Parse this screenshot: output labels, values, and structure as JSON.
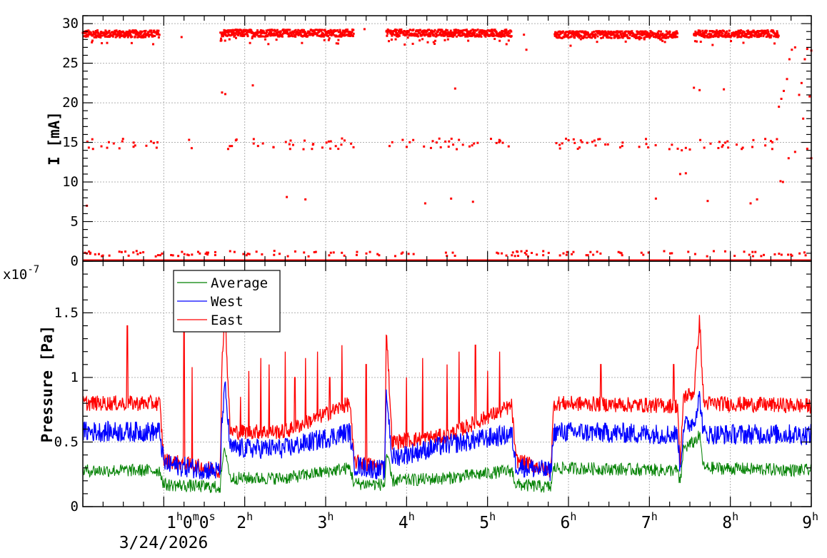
{
  "chart_data": [
    {
      "type": "scatter",
      "title": "",
      "xlabel": "",
      "ylabel": "I [mA]",
      "xlim": [
        0,
        9
      ],
      "ylim": [
        0,
        31
      ],
      "yticks": [
        0,
        5,
        10,
        15,
        20,
        25,
        30
      ],
      "grid": true,
      "color": "#ff0000",
      "series": [
        {
          "name": "",
          "upper_segments": [
            [
              0.0,
              0.95,
              28.7
            ],
            [
              1.7,
              3.35,
              28.8
            ],
            [
              3.75,
              5.3,
              28.8
            ],
            [
              5.83,
              7.35,
              28.6
            ],
            [
              7.55,
              8.6,
              28.7
            ]
          ],
          "mid_band": {
            "level": 14.8,
            "segments": [
              [
                0.0,
                0.95
              ],
              [
                1.3,
                1.35
              ],
              [
                1.7,
                3.35
              ],
              [
                3.75,
                5.3
              ],
              [
                5.83,
                7.35
              ],
              [
                7.55,
                8.6
              ]
            ]
          },
          "zero_line": 0.0,
          "points": [
            [
              0.05,
              7.0
            ],
            [
              1.22,
              28.3
            ],
            [
              1.72,
              21.3
            ],
            [
              1.76,
              21.1
            ],
            [
              2.1,
              22.2
            ],
            [
              2.52,
              8.1
            ],
            [
              2.75,
              7.8
            ],
            [
              3.48,
              29.3
            ],
            [
              4.23,
              7.3
            ],
            [
              4.55,
              7.9
            ],
            [
              4.6,
              21.8
            ],
            [
              4.82,
              7.5
            ],
            [
              5.45,
              28.6
            ],
            [
              5.48,
              26.7
            ],
            [
              7.08,
              7.9
            ],
            [
              7.55,
              21.9
            ],
            [
              7.62,
              21.6
            ],
            [
              7.72,
              7.6
            ],
            [
              7.92,
              21.7
            ],
            [
              8.25,
              7.3
            ],
            [
              8.33,
              7.8
            ],
            [
              7.35,
              14.2
            ],
            [
              7.4,
              14.0
            ],
            [
              7.45,
              14.3
            ],
            [
              7.5,
              14.1
            ],
            [
              7.38,
              11.0
            ],
            [
              7.45,
              11.1
            ],
            [
              8.6,
              19.5
            ],
            [
              8.63,
              20.5
            ],
            [
              8.66,
              21.5
            ],
            [
              8.7,
              23.0
            ],
            [
              8.73,
              25.5
            ],
            [
              8.76,
              26.7
            ],
            [
              8.8,
              27.0
            ],
            [
              8.85,
              21.0
            ],
            [
              8.88,
              22.5
            ],
            [
              8.92,
              25.5
            ],
            [
              8.95,
              26.8
            ],
            [
              9.0,
              26.6
            ],
            [
              8.62,
              10.1
            ],
            [
              8.65,
              10.0
            ],
            [
              8.72,
              13.0
            ],
            [
              8.8,
              13.8
            ],
            [
              8.9,
              18.0
            ],
            [
              8.95,
              14.2
            ],
            [
              9.0,
              13.0
            ],
            [
              8.98,
              20.8
            ]
          ]
        }
      ]
    },
    {
      "type": "line",
      "title": "",
      "xlabel": "",
      "ylabel": "Pressure [Pa]",
      "y_multiplier": "x10",
      "y_exponent": "-7",
      "xlim": [
        0,
        9
      ],
      "ylim": [
        0,
        1.9
      ],
      "yticks": [
        0,
        0.5,
        1,
        1.5
      ],
      "ytick_labels": [
        "0",
        "0.5",
        "1",
        "1.5"
      ],
      "grid": true,
      "legend": {
        "position": "top-left",
        "entries": [
          "Average",
          "West",
          "East"
        ]
      },
      "series": [
        {
          "name": "Average",
          "color": "#008000",
          "knots": [
            [
              0.0,
              0.28
            ],
            [
              0.95,
              0.28
            ],
            [
              1.0,
              0.17
            ],
            [
              1.7,
              0.15
            ],
            [
              1.72,
              0.32
            ],
            [
              1.76,
              0.45
            ],
            [
              1.82,
              0.22
            ],
            [
              2.5,
              0.22
            ],
            [
              3.3,
              0.3
            ],
            [
              3.35,
              0.18
            ],
            [
              3.73,
              0.17
            ],
            [
              3.75,
              0.42
            ],
            [
              3.82,
              0.2
            ],
            [
              4.5,
              0.22
            ],
            [
              5.3,
              0.28
            ],
            [
              5.35,
              0.17
            ],
            [
              5.78,
              0.15
            ],
            [
              5.82,
              0.3
            ],
            [
              7.35,
              0.28
            ],
            [
              7.38,
              0.16
            ],
            [
              7.42,
              0.45
            ],
            [
              7.55,
              0.5
            ],
            [
              7.62,
              0.55
            ],
            [
              7.67,
              0.3
            ],
            [
              9.0,
              0.28
            ]
          ],
          "noise": 0.05
        },
        {
          "name": "West",
          "color": "#0000ff",
          "knots": [
            [
              0.0,
              0.58
            ],
            [
              0.95,
              0.58
            ],
            [
              1.0,
              0.33
            ],
            [
              1.7,
              0.27
            ],
            [
              1.72,
              0.7
            ],
            [
              1.76,
              0.92
            ],
            [
              1.82,
              0.45
            ],
            [
              2.5,
              0.45
            ],
            [
              3.3,
              0.58
            ],
            [
              3.35,
              0.32
            ],
            [
              3.73,
              0.28
            ],
            [
              3.75,
              0.9
            ],
            [
              3.82,
              0.38
            ],
            [
              4.5,
              0.48
            ],
            [
              5.3,
              0.56
            ],
            [
              5.35,
              0.32
            ],
            [
              5.78,
              0.27
            ],
            [
              5.82,
              0.58
            ],
            [
              7.35,
              0.56
            ],
            [
              7.38,
              0.28
            ],
            [
              7.42,
              0.62
            ],
            [
              7.55,
              0.66
            ],
            [
              7.62,
              0.85
            ],
            [
              7.67,
              0.56
            ],
            [
              9.0,
              0.56
            ]
          ],
          "noise": 0.08
        },
        {
          "name": "East",
          "color": "#ff0000",
          "knots": [
            [
              0.0,
              0.8
            ],
            [
              0.95,
              0.8
            ],
            [
              1.0,
              0.36
            ],
            [
              1.7,
              0.28
            ],
            [
              1.72,
              1.2
            ],
            [
              1.76,
              1.45
            ],
            [
              1.82,
              0.58
            ],
            [
              2.5,
              0.58
            ],
            [
              3.3,
              0.8
            ],
            [
              3.35,
              0.35
            ],
            [
              3.73,
              0.3
            ],
            [
              3.75,
              1.4
            ],
            [
              3.82,
              0.5
            ],
            [
              4.5,
              0.55
            ],
            [
              5.3,
              0.78
            ],
            [
              5.35,
              0.36
            ],
            [
              5.78,
              0.28
            ],
            [
              5.82,
              0.8
            ],
            [
              7.35,
              0.78
            ],
            [
              7.38,
              0.3
            ],
            [
              7.42,
              0.85
            ],
            [
              7.55,
              0.88
            ],
            [
              7.62,
              1.45
            ],
            [
              7.67,
              0.8
            ],
            [
              9.0,
              0.78
            ]
          ],
          "noise": 0.06
        }
      ],
      "spikes": [
        [
          0.55,
          1.4
        ],
        [
          1.25,
          1.38
        ],
        [
          1.35,
          1.08
        ],
        [
          1.95,
          0.85
        ],
        [
          2.05,
          1.05
        ],
        [
          2.2,
          1.15
        ],
        [
          2.3,
          1.1
        ],
        [
          2.5,
          1.2
        ],
        [
          2.62,
          1.0
        ],
        [
          2.75,
          1.15
        ],
        [
          2.9,
          1.2
        ],
        [
          3.05,
          1.0
        ],
        [
          3.2,
          1.25
        ],
        [
          3.5,
          1.1
        ],
        [
          4.0,
          1.0
        ],
        [
          4.2,
          1.15
        ],
        [
          4.5,
          1.1
        ],
        [
          4.65,
          1.2
        ],
        [
          4.85,
          1.25
        ],
        [
          5.0,
          1.05
        ],
        [
          5.15,
          1.2
        ],
        [
          6.4,
          1.1
        ],
        [
          7.3,
          1.1
        ]
      ]
    }
  ],
  "x_axis": {
    "tick_labels": [
      {
        "value": 1,
        "base": "1",
        "sup": "h",
        "suffix": "0",
        "suffix_sup": "m",
        "suffix2": "0",
        "suffix2_sup": "s"
      },
      {
        "value": 2,
        "base": "2",
        "sup": "h"
      },
      {
        "value": 3,
        "base": "3",
        "sup": "h"
      },
      {
        "value": 4,
        "base": "4",
        "sup": "h"
      },
      {
        "value": 5,
        "base": "5",
        "sup": "h"
      },
      {
        "value": 6,
        "base": "6",
        "sup": "h"
      },
      {
        "value": 7,
        "base": "7",
        "sup": "h"
      },
      {
        "value": 8,
        "base": "8",
        "sup": "h"
      },
      {
        "value": 9,
        "base": "9",
        "sup": "h"
      }
    ],
    "date_label": "3/24/2026"
  }
}
